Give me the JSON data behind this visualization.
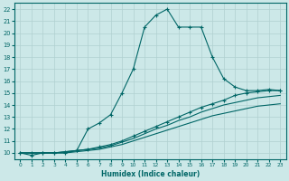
{
  "xlabel": "Humidex (Indice chaleur)",
  "bg_color": "#cce8e8",
  "grid_color": "#b0d0d0",
  "line_color": "#006666",
  "xlim": [
    -0.5,
    23.5
  ],
  "ylim": [
    9.5,
    22.5
  ],
  "xticks": [
    0,
    1,
    2,
    3,
    4,
    5,
    6,
    7,
    8,
    9,
    10,
    11,
    12,
    13,
    14,
    15,
    16,
    17,
    18,
    19,
    20,
    21,
    22,
    23
  ],
  "yticks": [
    10,
    11,
    12,
    13,
    14,
    15,
    16,
    17,
    18,
    19,
    20,
    21,
    22
  ],
  "series": [
    {
      "x": [
        0,
        1,
        2,
        3,
        4,
        5,
        6,
        7,
        8,
        9,
        10,
        11,
        12,
        13,
        14,
        15,
        16,
        17,
        18,
        19,
        20,
        21,
        22,
        23
      ],
      "y": [
        10.0,
        9.8,
        10.0,
        10.0,
        10.0,
        10.2,
        12.0,
        12.5,
        13.2,
        15.0,
        17.0,
        20.5,
        21.5,
        22.0,
        20.5,
        20.5,
        20.5,
        18.0,
        16.2,
        15.5,
        15.2,
        15.2,
        15.3,
        15.2
      ],
      "marker": true
    },
    {
      "x": [
        0,
        1,
        2,
        3,
        4,
        5,
        6,
        7,
        8,
        9,
        10,
        11,
        12,
        13,
        14,
        15,
        16,
        17,
        18,
        19,
        20,
        21,
        22,
        23
      ],
      "y": [
        10.0,
        10.0,
        10.0,
        10.0,
        10.1,
        10.2,
        10.3,
        10.5,
        10.7,
        11.0,
        11.4,
        11.8,
        12.2,
        12.6,
        13.0,
        13.4,
        13.8,
        14.1,
        14.4,
        14.8,
        15.0,
        15.1,
        15.2,
        15.2
      ],
      "marker": true
    },
    {
      "x": [
        0,
        1,
        2,
        3,
        4,
        5,
        6,
        7,
        8,
        9,
        10,
        11,
        12,
        13,
        14,
        15,
        16,
        17,
        18,
        19,
        20,
        21,
        22,
        23
      ],
      "y": [
        10.0,
        10.0,
        10.0,
        10.0,
        10.1,
        10.2,
        10.3,
        10.4,
        10.6,
        10.9,
        11.2,
        11.6,
        12.0,
        12.3,
        12.7,
        13.0,
        13.4,
        13.7,
        14.0,
        14.2,
        14.4,
        14.6,
        14.7,
        14.8
      ],
      "marker": false
    },
    {
      "x": [
        0,
        1,
        2,
        3,
        4,
        5,
        6,
        7,
        8,
        9,
        10,
        11,
        12,
        13,
        14,
        15,
        16,
        17,
        18,
        19,
        20,
        21,
        22,
        23
      ],
      "y": [
        10.0,
        10.0,
        10.0,
        10.0,
        10.0,
        10.1,
        10.2,
        10.3,
        10.5,
        10.7,
        11.0,
        11.3,
        11.6,
        11.9,
        12.2,
        12.5,
        12.8,
        13.1,
        13.3,
        13.5,
        13.7,
        13.9,
        14.0,
        14.1
      ],
      "marker": false
    }
  ]
}
